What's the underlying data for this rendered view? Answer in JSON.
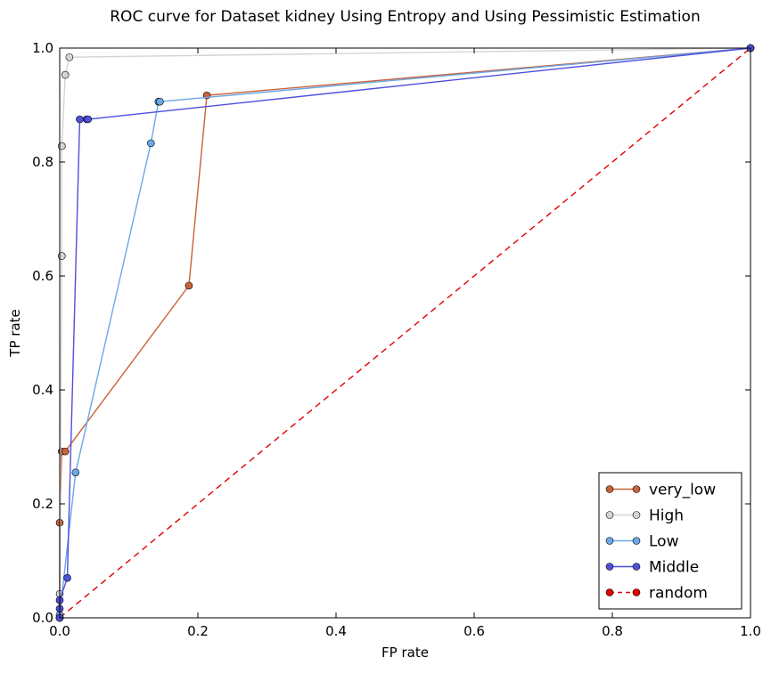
{
  "chart_data": {
    "type": "line",
    "title": "ROC curve for Dataset kidney Using Entropy and Using Pessimistic Estimation",
    "xlabel": "FP rate",
    "ylabel": "TP rate",
    "xlim": [
      0,
      1
    ],
    "ylim": [
      0,
      1
    ],
    "xticks": [
      "0.0",
      "0.2",
      "0.4",
      "0.6",
      "0.8",
      "1.0"
    ],
    "yticks": [
      "0.0",
      "0.2",
      "0.4",
      "0.6",
      "0.8",
      "1.0"
    ],
    "grid": false,
    "legend": "bottom-right",
    "series": [
      {
        "name": "very_low",
        "color": "#c8623a",
        "dashed": false,
        "x": [
          0.0,
          0.0,
          0.003,
          0.008,
          0.187,
          0.213,
          1.0
        ],
        "y": [
          0.0,
          0.167,
          0.292,
          0.292,
          0.583,
          0.917,
          1.0
        ]
      },
      {
        "name": "High",
        "color": "#d4d4d4",
        "dashed": false,
        "x": [
          0.0,
          0.0,
          0.003,
          0.003,
          0.008,
          0.014,
          1.0
        ],
        "y": [
          0.0,
          0.042,
          0.635,
          0.828,
          0.953,
          0.984,
          1.0
        ]
      },
      {
        "name": "Low",
        "color": "#6ba8e6",
        "dashed": false,
        "x": [
          0.0,
          0.0,
          0.023,
          0.132,
          0.143,
          0.145,
          1.0
        ],
        "y": [
          0.0,
          0.005,
          0.255,
          0.833,
          0.906,
          0.906,
          1.0
        ]
      },
      {
        "name": "Middle",
        "color": "#4f4fdc",
        "dashed": false,
        "x": [
          0.0,
          0.0,
          0.0,
          0.011,
          0.029,
          0.039,
          0.041,
          1.0
        ],
        "y": [
          0.0,
          0.016,
          0.031,
          0.07,
          0.875,
          0.875,
          0.875,
          1.0
        ]
      },
      {
        "name": "random",
        "color": "#e00000",
        "dashed": true,
        "x": [
          0.0,
          1.0
        ],
        "y": [
          0.0,
          1.0
        ]
      }
    ]
  }
}
